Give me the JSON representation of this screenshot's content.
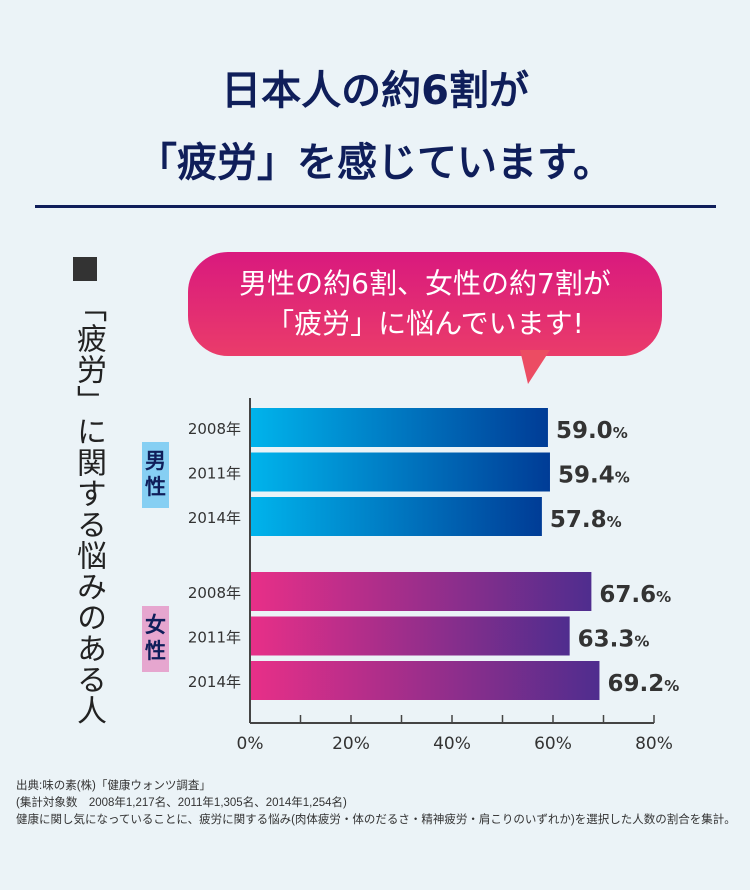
{
  "header": {
    "line1": "日本人の約6割が",
    "line2": "「疲労」を感じています。"
  },
  "side_label": "「疲労」に関する悩みのある人",
  "bubble": {
    "line1": "男性の約6割、女性の約7割が",
    "line2": "「疲労」に悩んでいます!"
  },
  "colors": {
    "male_start": "#00b4ec",
    "male_end": "#003c96",
    "female_start": "#e82f88",
    "female_end": "#4f2d8e",
    "male_badge": "#86cff3",
    "female_badge": "#e6a6cf",
    "badge_text": "#0f1e5a"
  },
  "chart_data": {
    "type": "bar",
    "orientation": "horizontal",
    "groups": [
      {
        "name": "男性",
        "categories": [
          "2008年",
          "2011年",
          "2014年"
        ],
        "values": [
          59.0,
          59.4,
          57.8
        ]
      },
      {
        "name": "女性",
        "categories": [
          "2008年",
          "2011年",
          "2014年"
        ],
        "values": [
          67.6,
          63.3,
          69.2
        ]
      }
    ],
    "value_suffix": "%",
    "xlim": [
      0,
      80
    ],
    "xticks": [
      "0%",
      "20%",
      "40%",
      "60%",
      "80%"
    ],
    "grid": false
  },
  "source": {
    "line1": "出典:味の素(株)「健康ウォンツ調査」",
    "line2": "(集計対象数　2008年1,217名、2011年1,305名、2014年1,254名)",
    "line3": "健康に関し気になっていることに、疲労に関する悩み(肉体疲労・体のだるさ・精神疲労・肩こりのいずれか)を選択した人数の割合を集計。"
  }
}
